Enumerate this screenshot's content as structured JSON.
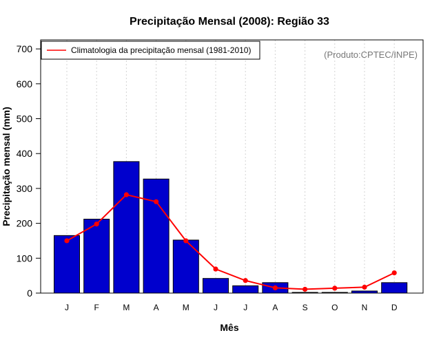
{
  "chart_data": {
    "type": "bar",
    "title": "Precipitação Mensal (2008): Região 33",
    "xlabel": "Mês",
    "ylabel": "Precipitação mensal (mm)",
    "ylim": [
      0,
      700
    ],
    "yticks": [
      0,
      100,
      200,
      300,
      400,
      500,
      600,
      700
    ],
    "categories": [
      "J",
      "F",
      "M",
      "A",
      "M",
      "J",
      "J",
      "A",
      "S",
      "O",
      "N",
      "D"
    ],
    "series": [
      {
        "name": "Precipitação mensal (2008)",
        "type": "bar",
        "color": "#0000CD",
        "values": [
          165,
          212,
          377,
          327,
          152,
          42,
          21,
          30,
          2,
          2,
          6,
          30
        ]
      },
      {
        "name": "Climatologia da precipitação mensal (1981-2010)",
        "type": "line",
        "color": "#FF0000",
        "values": [
          150,
          198,
          282,
          262,
          150,
          69,
          36,
          15,
          11,
          14,
          17,
          58
        ]
      }
    ],
    "legend": {
      "position": "top-left",
      "entries": [
        "Climatologia da precipitação mensal (1981-2010)"
      ]
    },
    "annotation": "(Produto:CPTEC/INPE)",
    "grid": "vertical dotted"
  }
}
